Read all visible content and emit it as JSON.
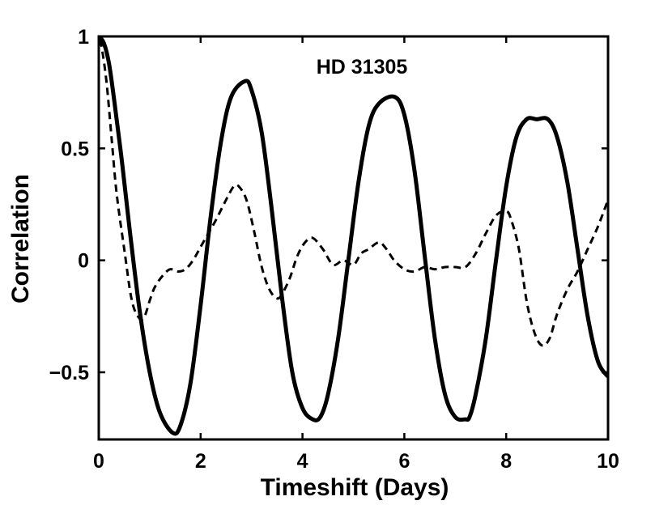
{
  "chart_data": {
    "type": "line",
    "title": "",
    "annotation": "HD 31305",
    "xlabel": "Timeshift (Days)",
    "ylabel": "Correlation",
    "xlim": [
      0,
      10
    ],
    "ylim": [
      -0.8,
      1.0
    ],
    "xticks": [
      0,
      2,
      4,
      6,
      8,
      10
    ],
    "xtick_labels": [
      "0",
      "2",
      "4",
      "6",
      "8",
      "10"
    ],
    "yticks": [
      -0.5,
      0,
      0.5,
      1
    ],
    "ytick_labels": [
      "−0.5",
      "0",
      "0.5",
      "1"
    ],
    "grid": false,
    "legend": "none",
    "series": [
      {
        "style": "solid",
        "color": "#000000",
        "x": [
          0,
          0.1,
          0.2,
          0.3,
          0.45,
          0.6,
          0.8,
          1.0,
          1.2,
          1.45,
          1.6,
          1.8,
          2.0,
          2.2,
          2.4,
          2.6,
          2.87,
          3.0,
          3.2,
          3.4,
          3.6,
          3.8,
          4.0,
          4.2,
          4.35,
          4.5,
          4.7,
          4.9,
          5.1,
          5.3,
          5.5,
          5.81,
          6.0,
          6.2,
          6.4,
          6.6,
          6.8,
          7.0,
          7.2,
          7.28,
          7.4,
          7.6,
          7.8,
          8.0,
          8.2,
          8.4,
          8.6,
          8.82,
          9.0,
          9.2,
          9.4,
          9.6,
          9.8,
          10.0
        ],
        "y": [
          1.0,
          0.97,
          0.88,
          0.72,
          0.45,
          0.15,
          -0.22,
          -0.5,
          -0.68,
          -0.77,
          -0.74,
          -0.55,
          -0.2,
          0.2,
          0.53,
          0.73,
          0.8,
          0.76,
          0.57,
          0.22,
          -0.17,
          -0.5,
          -0.66,
          -0.71,
          -0.7,
          -0.6,
          -0.35,
          0.0,
          0.35,
          0.6,
          0.7,
          0.73,
          0.65,
          0.4,
          0.02,
          -0.35,
          -0.6,
          -0.7,
          -0.71,
          -0.7,
          -0.6,
          -0.35,
          0.0,
          0.33,
          0.55,
          0.63,
          0.63,
          0.63,
          0.55,
          0.35,
          0.05,
          -0.25,
          -0.45,
          -0.52
        ]
      },
      {
        "style": "dashed",
        "color": "#000000",
        "x": [
          0,
          0.05,
          0.15,
          0.25,
          0.35,
          0.5,
          0.65,
          0.8,
          0.9,
          1.0,
          1.1,
          1.25,
          1.4,
          1.55,
          1.7,
          1.85,
          2.0,
          2.15,
          2.3,
          2.5,
          2.65,
          2.75,
          2.9,
          3.05,
          3.2,
          3.35,
          3.5,
          3.6,
          3.75,
          3.9,
          4.05,
          4.2,
          4.4,
          4.6,
          4.8,
          5.0,
          5.15,
          5.3,
          5.5,
          5.65,
          5.8,
          6.0,
          6.2,
          6.4,
          6.6,
          6.8,
          7.0,
          7.2,
          7.4,
          7.6,
          7.8,
          8.0,
          8.1,
          8.25,
          8.4,
          8.55,
          8.7,
          8.85,
          9.0,
          9.2,
          9.4,
          9.6,
          9.8,
          10.0
        ],
        "y": [
          0.98,
          0.96,
          0.8,
          0.55,
          0.3,
          0.05,
          -0.18,
          -0.26,
          -0.25,
          -0.18,
          -0.12,
          -0.07,
          -0.04,
          -0.05,
          -0.04,
          0.0,
          0.06,
          0.12,
          0.18,
          0.27,
          0.33,
          0.33,
          0.27,
          0.13,
          -0.03,
          -0.13,
          -0.17,
          -0.15,
          -0.08,
          0.02,
          0.08,
          0.1,
          0.05,
          -0.02,
          0.0,
          -0.02,
          0.03,
          0.05,
          0.08,
          0.05,
          0.0,
          -0.04,
          -0.05,
          -0.03,
          -0.04,
          -0.03,
          -0.03,
          -0.03,
          0.03,
          0.12,
          0.2,
          0.22,
          0.18,
          0.05,
          -0.18,
          -0.32,
          -0.38,
          -0.35,
          -0.24,
          -0.13,
          -0.05,
          0.05,
          0.15,
          0.27
        ]
      }
    ]
  }
}
